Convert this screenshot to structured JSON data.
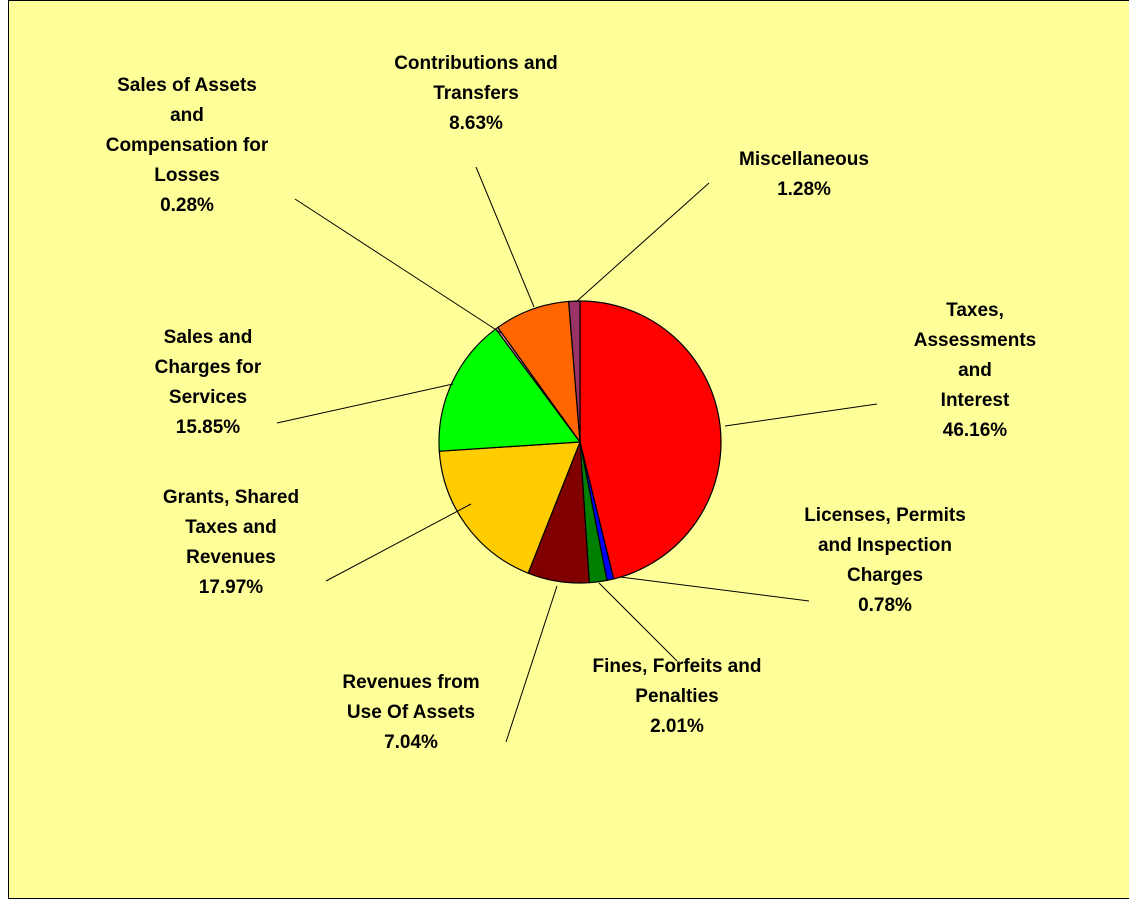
{
  "chart_data": {
    "type": "pie",
    "title": "",
    "slices": [
      {
        "label_lines": [
          "Taxes,",
          "Assessments",
          "and",
          "Interest"
        ],
        "value": 46.16,
        "pct_label": "46.16%",
        "color": "#ff0000"
      },
      {
        "label_lines": [
          "Licenses, Permits",
          "and Inspection",
          "Charges"
        ],
        "value": 0.78,
        "pct_label": "0.78%",
        "color": "#0000ff"
      },
      {
        "label_lines": [
          "Fines, Forfeits and",
          "Penalties"
        ],
        "value": 2.01,
        "pct_label": "2.01%",
        "color": "#008000"
      },
      {
        "label_lines": [
          "Revenues from",
          "Use Of Assets"
        ],
        "value": 7.04,
        "pct_label": "7.04%",
        "color": "#800000"
      },
      {
        "label_lines": [
          "Grants, Shared",
          "Taxes and",
          "Revenues"
        ],
        "value": 17.97,
        "pct_label": "17.97%",
        "color": "#ffcc00"
      },
      {
        "label_lines": [
          "Sales and",
          "Charges for",
          "Services"
        ],
        "value": 15.85,
        "pct_label": "15.85%",
        "color": "#00ff00"
      },
      {
        "label_lines": [
          "Sales of Assets",
          "and",
          "Compensation for",
          "Losses"
        ],
        "value": 0.28,
        "pct_label": "0.28%",
        "color": "#ff99cc"
      },
      {
        "label_lines": [
          "Contributions and",
          "Transfers"
        ],
        "value": 8.63,
        "pct_label": "8.63%",
        "color": "#ff6600"
      },
      {
        "label_lines": [
          "Miscellaneous"
        ],
        "value": 1.28,
        "pct_label": "1.28%",
        "color": "#993366"
      }
    ]
  }
}
